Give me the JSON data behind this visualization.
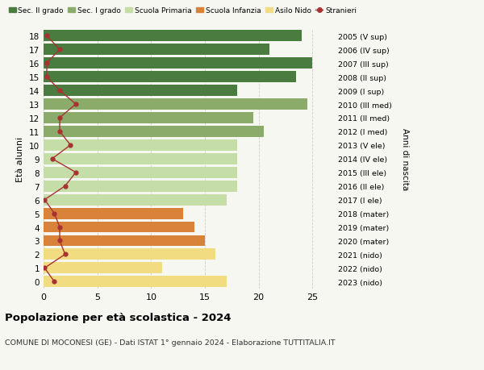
{
  "ages": [
    18,
    17,
    16,
    15,
    14,
    13,
    12,
    11,
    10,
    9,
    8,
    7,
    6,
    5,
    4,
    3,
    2,
    1,
    0
  ],
  "bar_values": [
    24,
    21,
    25,
    23.5,
    18,
    24.5,
    19.5,
    20.5,
    18,
    18,
    18,
    18,
    17,
    13,
    14,
    15,
    16,
    11,
    17
  ],
  "bar_colors": [
    "#4a7c3f",
    "#4a7c3f",
    "#4a7c3f",
    "#4a7c3f",
    "#4a7c3f",
    "#8aab6a",
    "#8aab6a",
    "#8aab6a",
    "#c5dea8",
    "#c5dea8",
    "#c5dea8",
    "#c5dea8",
    "#c5dea8",
    "#d9823a",
    "#d9823a",
    "#d9823a",
    "#f2dc82",
    "#f2dc82",
    "#f2dc82"
  ],
  "stranieri": [
    0.3,
    1.5,
    0.3,
    0.3,
    1.5,
    3.0,
    1.5,
    1.5,
    2.5,
    0.8,
    3.0,
    2.0,
    0.1,
    1.0,
    1.5,
    1.5,
    2.0,
    0.1,
    1.0
  ],
  "right_labels": [
    "2005 (V sup)",
    "2006 (IV sup)",
    "2007 (III sup)",
    "2008 (II sup)",
    "2009 (I sup)",
    "2010 (III med)",
    "2011 (II med)",
    "2012 (I med)",
    "2013 (V ele)",
    "2014 (IV ele)",
    "2015 (III ele)",
    "2016 (II ele)",
    "2017 (I ele)",
    "2018 (mater)",
    "2019 (mater)",
    "2020 (mater)",
    "2021 (nido)",
    "2022 (nido)",
    "2023 (nido)"
  ],
  "legend_labels": [
    "Sec. II grado",
    "Sec. I grado",
    "Scuola Primaria",
    "Scuola Infanzia",
    "Asilo Nido",
    "Stranieri"
  ],
  "legend_colors": [
    "#4a7c3f",
    "#8aab6a",
    "#c5dea8",
    "#d9823a",
    "#f2dc82",
    "#a83232"
  ],
  "ylabel": "Età alunni",
  "right_ylabel": "Anni di nascita",
  "title": "Popolazione per età scolastica - 2024",
  "subtitle": "COMUNE DI MOCONESI (GE) - Dati ISTAT 1° gennaio 2024 - Elaborazione TUTTITALIA.IT",
  "xlim": [
    0,
    27
  ],
  "stranieri_color": "#a83232",
  "bar_height": 0.82,
  "background_color": "#f7f7f2",
  "grid_color": "#cccccc"
}
